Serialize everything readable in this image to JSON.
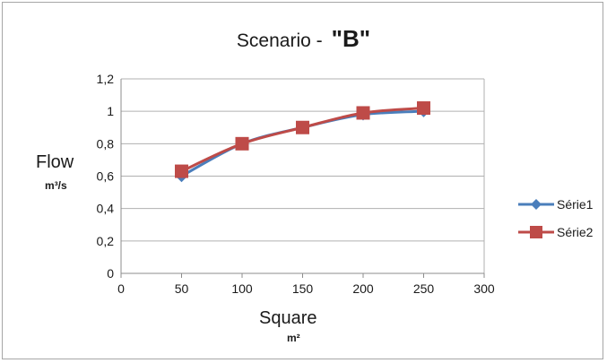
{
  "chart_data": {
    "type": "line",
    "title": "Scenario -",
    "title_emphasis": "\"B\"",
    "xlabel": "Square",
    "xlabel_unit": "m²",
    "ylabel": "Flow",
    "ylabel_unit": "m³/s",
    "xlim": [
      0,
      300
    ],
    "ylim": [
      0,
      1.2
    ],
    "x_ticks": [
      "0",
      "50",
      "100",
      "150",
      "200",
      "250",
      "300"
    ],
    "y_ticks": [
      "0",
      "0,2",
      "0,4",
      "0,6",
      "0,8",
      "1",
      "1,2"
    ],
    "grid": "horizontal",
    "legend_position": "right",
    "x": [
      50,
      100,
      150,
      200,
      250
    ],
    "series": [
      {
        "name": "Série1",
        "values": [
          0.6,
          0.8,
          0.9,
          0.98,
          1.0
        ],
        "color": "#4a7ebb",
        "marker": "diamond"
      },
      {
        "name": "Série2",
        "values": [
          0.63,
          0.8,
          0.9,
          0.99,
          1.02
        ],
        "color": "#be4b48",
        "marker": "square"
      }
    ]
  }
}
